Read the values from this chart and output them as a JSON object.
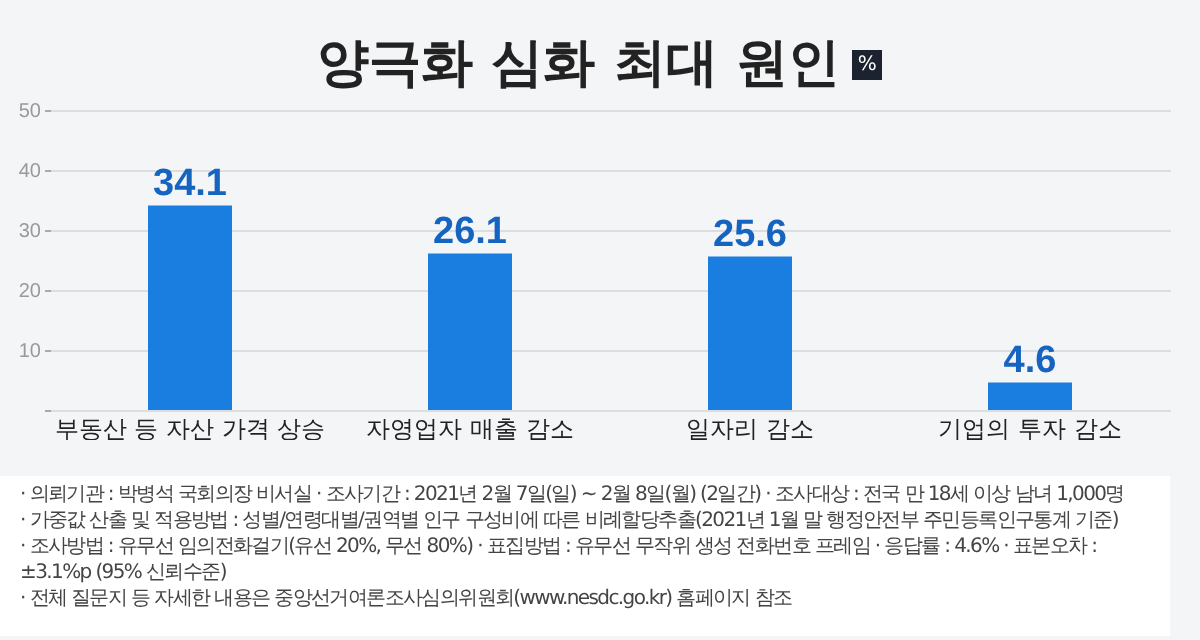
{
  "chart_data": {
    "type": "bar",
    "title": "양극화 심화 최대 원인",
    "ylabel": "%",
    "categories": [
      "부동산 등 자산 가격 상승",
      "자영업자 매출 감소",
      "일자리 감소",
      "기업의 투자 감소"
    ],
    "values": [
      34.1,
      26.1,
      25.6,
      4.6
    ],
    "color": "#1a7de0",
    "ylim": [
      0,
      50
    ],
    "yticks": [
      {
        "value": 0,
        "label": null
      },
      10,
      20,
      30,
      40,
      50
    ],
    "grid": "y",
    "data_labels": true,
    "annotations": [
      "· 의뢰기관 : 박병석 국회의장 비서실   · 조사기간 : 2021년 2월 7일(일) ~ 2월 8일(월) (2일간)   · 조사대상 : 전국 만 18세 이상 남녀 1,000명",
      "· 가중값 산출 및 적용방법 : 성별/연령대별/권역별 인구 구성비에 따른 비례할당추출(2021년 1월 말 행정안전부 주민등록인구통계 기준)",
      "· 조사방법 : 유무선 임의전화걸기(유선 20%, 무선 80%)   · 표집방법 : 유무선 무작위 생성 전화번호 프레임   · 응답률 : 4.6%   · 표본오차 : ±3.1%p (95% 신뢰수준)",
      "· 전체 질문지 등 자세한 내용은 중앙선거여론조사심의위원회(www.nesdc.go.kr) 홈페이지 참조"
    ]
  }
}
